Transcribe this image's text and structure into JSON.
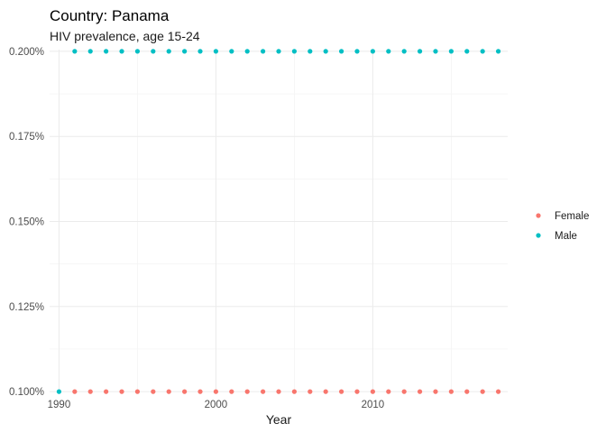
{
  "chart_data": {
    "type": "scatter",
    "title": "Country: Panama",
    "subtitle": "HIV prevalence, age 15-24",
    "xlabel": "Year",
    "ylabel": "",
    "xlim": [
      1989.4,
      2018.6
    ],
    "ylim": [
      0.0995,
      0.2005
    ],
    "x_ticks": [
      1990,
      2000,
      2010
    ],
    "y_ticks": [
      0.1,
      0.125,
      0.15,
      0.175,
      0.2
    ],
    "y_tick_labels": [
      "0.100%",
      "0.125%",
      "0.150%",
      "0.175%",
      "0.200%"
    ],
    "grid": true,
    "legend_position": "right",
    "series": [
      {
        "name": "Female",
        "color": "#F8766D",
        "x": [
          1991,
          1992,
          1993,
          1994,
          1995,
          1996,
          1997,
          1998,
          1999,
          2000,
          2001,
          2002,
          2003,
          2004,
          2005,
          2006,
          2007,
          2008,
          2009,
          2010,
          2011,
          2012,
          2013,
          2014,
          2015,
          2016,
          2017,
          2018
        ],
        "y": [
          0.1,
          0.1,
          0.1,
          0.1,
          0.1,
          0.1,
          0.1,
          0.1,
          0.1,
          0.1,
          0.1,
          0.1,
          0.1,
          0.1,
          0.1,
          0.1,
          0.1,
          0.1,
          0.1,
          0.1,
          0.1,
          0.1,
          0.1,
          0.1,
          0.1,
          0.1,
          0.1,
          0.1
        ]
      },
      {
        "name": "Male",
        "color": "#00BFC4",
        "x": [
          1990,
          1991,
          1992,
          1993,
          1994,
          1995,
          1996,
          1997,
          1998,
          1999,
          2000,
          2001,
          2002,
          2003,
          2004,
          2005,
          2006,
          2007,
          2008,
          2009,
          2010,
          2011,
          2012,
          2013,
          2014,
          2015,
          2016,
          2017,
          2018
        ],
        "y": [
          0.1,
          0.2,
          0.2,
          0.2,
          0.2,
          0.2,
          0.2,
          0.2,
          0.2,
          0.2,
          0.2,
          0.2,
          0.2,
          0.2,
          0.2,
          0.2,
          0.2,
          0.2,
          0.2,
          0.2,
          0.2,
          0.2,
          0.2,
          0.2,
          0.2,
          0.2,
          0.2,
          0.2,
          0.2
        ]
      }
    ]
  }
}
